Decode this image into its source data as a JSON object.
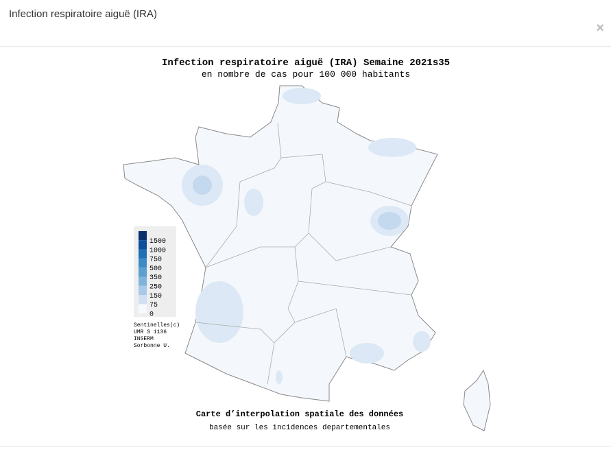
{
  "header": {
    "title": "Infection respiratoire aiguë (IRA)",
    "close": "×"
  },
  "map": {
    "title": "Infection respiratoire aiguë (IRA) Semaine 2021s35",
    "subtitle": "en nombre de cas pour 100 000 habitants",
    "legend": [
      {
        "value": 1500,
        "color": "#08306b"
      },
      {
        "value": 1000,
        "color": "#0b4f9c"
      },
      {
        "value": 750,
        "color": "#1f6fb4"
      },
      {
        "value": 500,
        "color": "#3c8bc4"
      },
      {
        "value": 350,
        "color": "#5ba0d0"
      },
      {
        "value": 250,
        "color": "#7fb5dc"
      },
      {
        "value": 150,
        "color": "#a6cae8"
      },
      {
        "value": 75,
        "color": "#cfe0f2"
      },
      {
        "value": 0,
        "color": "#f6f9fd"
      }
    ],
    "credits": [
      "Sentinelles(c)",
      "UMR S 1136",
      "INSERM",
      "Sorbonne U."
    ],
    "caption": "Carte d’interpolation spatiale des données",
    "caption_sub": "basée sur les incidences departementales"
  }
}
